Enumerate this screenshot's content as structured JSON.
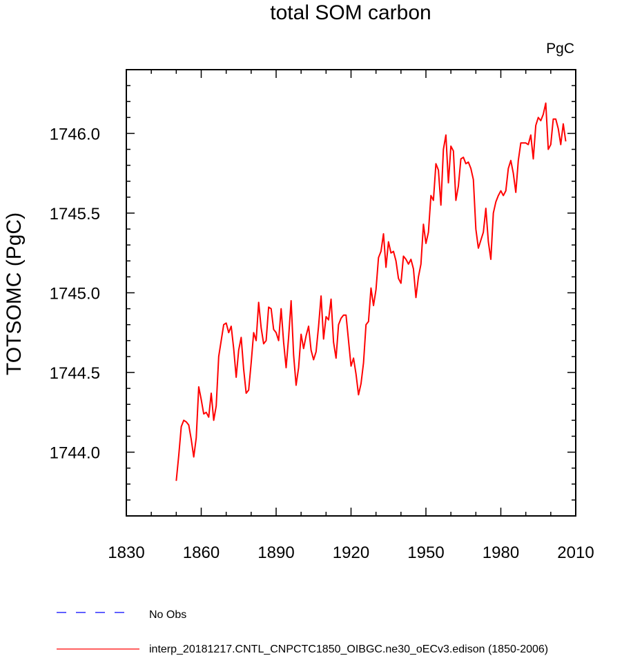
{
  "chart_data": {
    "type": "line",
    "title": "total SOM carbon",
    "units_label": "PgC",
    "xlabel": "",
    "ylabel": "TOTSOMC  (PgC)",
    "xlim": [
      1830,
      2010
    ],
    "ylim": [
      1743.6,
      1746.4
    ],
    "x_ticks": [
      1830,
      1860,
      1890,
      1920,
      1950,
      1980,
      2010
    ],
    "x_tick_labels": [
      "1830",
      "1860",
      "1890",
      "1920",
      "1950",
      "1980",
      "2010"
    ],
    "y_ticks": [
      1744.0,
      1744.5,
      1745.0,
      1745.5,
      1746.0
    ],
    "y_tick_labels": [
      "1744.0",
      "1744.5",
      "1745.0",
      "1745.5",
      "1746.0"
    ],
    "grid": false,
    "legend_position": "bottom-left",
    "legend": [
      {
        "name": "No Obs",
        "color": "#0000ff",
        "dash": true
      },
      {
        "name": "interp_20181217.CNTL_CNPCTC1850_OIBGC.ne30_oECv3.edison (1850-2006)",
        "color": "#ff0000",
        "dash": false
      }
    ],
    "series": [
      {
        "name": "interp_20181217.CNTL_CNPCTC1850_OIBGC.ne30_oECv3.edison (1850-2006)",
        "color": "#ff0000",
        "x_start": 1850,
        "x_step": 1,
        "values": [
          1743.82,
          1743.98,
          1744.16,
          1744.2,
          1744.19,
          1744.17,
          1744.08,
          1743.97,
          1744.09,
          1744.41,
          1744.33,
          1744.24,
          1744.25,
          1744.22,
          1744.37,
          1744.2,
          1744.29,
          1744.6,
          1744.7,
          1744.8,
          1744.81,
          1744.75,
          1744.79,
          1744.65,
          1744.47,
          1744.64,
          1744.72,
          1744.52,
          1744.37,
          1744.39,
          1744.56,
          1744.75,
          1744.7,
          1744.94,
          1744.78,
          1744.68,
          1744.7,
          1744.91,
          1744.9,
          1744.77,
          1744.75,
          1744.7,
          1744.9,
          1744.69,
          1744.53,
          1744.72,
          1744.95,
          1744.61,
          1744.42,
          1744.53,
          1744.74,
          1744.65,
          1744.73,
          1744.79,
          1744.64,
          1744.58,
          1744.63,
          1744.79,
          1744.98,
          1744.71,
          1744.85,
          1744.83,
          1744.96,
          1744.69,
          1744.59,
          1744.8,
          1744.84,
          1744.86,
          1744.86,
          1744.7,
          1744.54,
          1744.59,
          1744.49,
          1744.36,
          1744.43,
          1744.56,
          1744.8,
          1744.82,
          1745.03,
          1744.92,
          1745.02,
          1745.22,
          1745.26,
          1745.37,
          1745.16,
          1745.32,
          1745.25,
          1745.26,
          1745.2,
          1745.09,
          1745.06,
          1745.23,
          1745.21,
          1745.18,
          1745.21,
          1745.15,
          1744.97,
          1745.1,
          1745.18,
          1745.43,
          1745.31,
          1745.38,
          1745.61,
          1745.58,
          1745.81,
          1745.77,
          1745.55,
          1745.9,
          1745.99,
          1745.69,
          1745.92,
          1745.89,
          1745.58,
          1745.67,
          1745.84,
          1745.85,
          1745.81,
          1745.82,
          1745.78,
          1745.71,
          1745.4,
          1745.28,
          1745.33,
          1745.38,
          1745.53,
          1745.32,
          1745.21,
          1745.5,
          1745.57,
          1745.61,
          1745.64,
          1745.61,
          1745.64,
          1745.78,
          1745.83,
          1745.75,
          1745.63,
          1745.83,
          1745.94,
          1745.94,
          1745.94,
          1745.93,
          1745.99,
          1745.84,
          1746.05,
          1746.1,
          1746.08,
          1746.12,
          1746.19,
          1745.9,
          1745.93,
          1746.09,
          1746.09,
          1746.03,
          1745.93,
          1746.06,
          1745.95
        ]
      }
    ]
  }
}
